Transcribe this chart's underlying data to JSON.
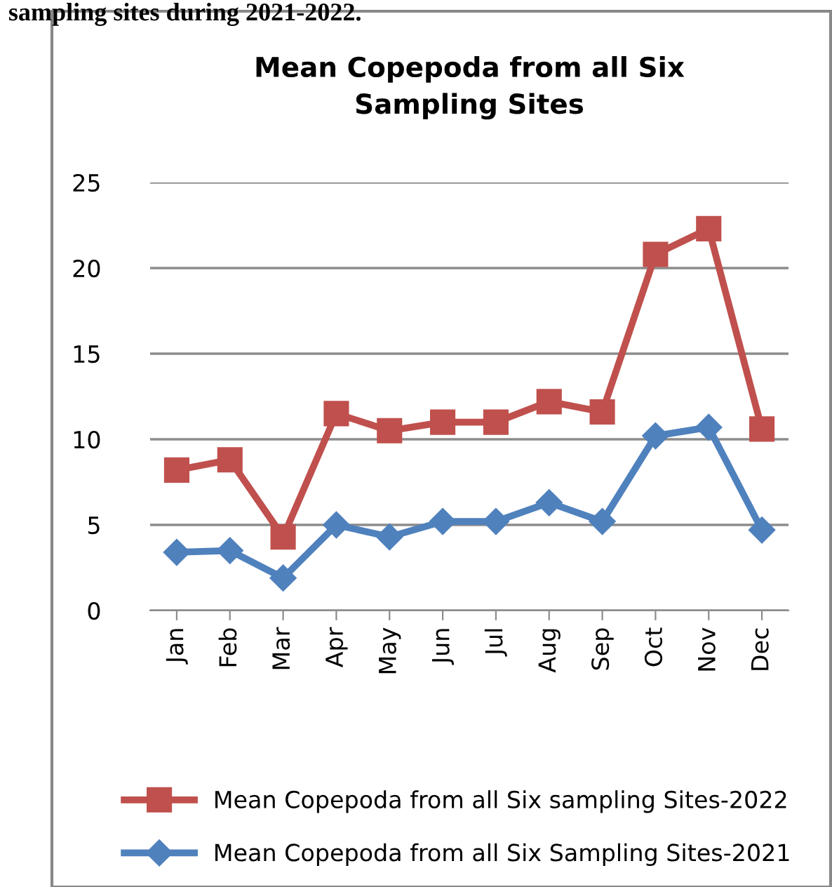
{
  "chart_data": {
    "type": "line",
    "title": "Mean Copepoda from all Six\nSampling Sites",
    "annotations": [
      "sampling sites during 2021-2022."
    ],
    "categories": [
      "Jan",
      "Feb",
      "Mar",
      "Apr",
      "May",
      "Jun",
      "Jul",
      "Aug",
      "Sep",
      "Oct",
      "Nov",
      "Dec"
    ],
    "series": [
      {
        "name": "Mean Copepoda from all Six sampling Sites-2022",
        "color": "#c0504d",
        "marker": "square",
        "values": [
          8.2,
          8.8,
          4.3,
          11.5,
          10.5,
          11.0,
          11.0,
          12.2,
          11.6,
          20.8,
          22.3,
          10.6
        ]
      },
      {
        "name": "Mean Copepoda from all Six Sampling Sites-2021",
        "color": "#4f81bd",
        "marker": "diamond",
        "values": [
          3.4,
          3.5,
          1.9,
          5.0,
          4.3,
          5.2,
          5.2,
          6.3,
          5.2,
          10.2,
          10.7,
          4.7
        ]
      }
    ],
    "ylim": [
      0,
      25
    ],
    "yticks": [
      0,
      5,
      10,
      15,
      20,
      25
    ],
    "grid": "y",
    "legend": "bottom",
    "line_style": "solid"
  }
}
